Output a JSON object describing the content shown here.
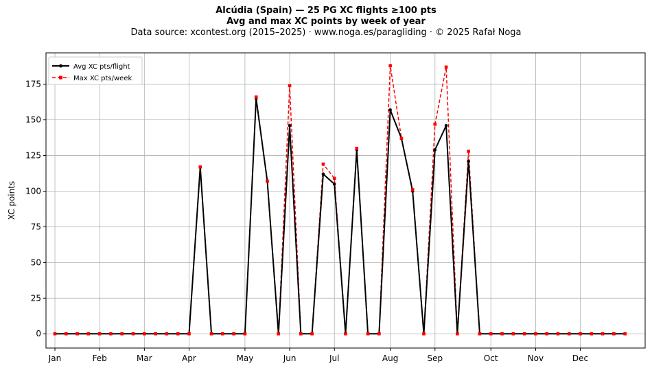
{
  "title": "Alcúdia (Spain)  —  25 PG XC flights ≥100 pts",
  "subtitle": "Avg and max XC points by week of year",
  "source": "Data source: xcontest.org (2015–2025)  ·  www.noga.es/paragliding  ·  © 2025 Rafał Noga",
  "chart_data": {
    "type": "line",
    "title": "Alcúdia (Spain)  —  25 PG XC flights ≥100 pts",
    "xlabel": "",
    "ylabel": "XC points",
    "x": [
      1,
      2,
      3,
      4,
      5,
      6,
      7,
      8,
      9,
      10,
      11,
      12,
      13,
      14,
      15,
      16,
      17,
      18,
      19,
      20,
      21,
      22,
      23,
      24,
      25,
      26,
      27,
      28,
      29,
      30,
      31,
      32,
      33,
      34,
      35,
      36,
      37,
      38,
      39,
      40,
      41,
      42,
      43,
      44,
      45,
      46,
      47,
      48,
      49,
      50,
      51,
      52
    ],
    "xlim": [
      0.2,
      53.8
    ],
    "ylim": [
      -10,
      197
    ],
    "yticks": [
      0,
      25,
      50,
      75,
      100,
      125,
      150,
      175
    ],
    "month_ticks": [
      {
        "label": "Jan",
        "x": 1
      },
      {
        "label": "Feb",
        "x": 5
      },
      {
        "label": "Mar",
        "x": 9
      },
      {
        "label": "Apr",
        "x": 13
      },
      {
        "label": "May",
        "x": 18
      },
      {
        "label": "Jun",
        "x": 22
      },
      {
        "label": "Jul",
        "x": 26
      },
      {
        "label": "Aug",
        "x": 31
      },
      {
        "label": "Sep",
        "x": 35
      },
      {
        "label": "Oct",
        "x": 40
      },
      {
        "label": "Nov",
        "x": 44
      },
      {
        "label": "Dec",
        "x": 48
      }
    ],
    "grid": true,
    "legend_position": "top-left",
    "series": [
      {
        "name": "Avg XC pts/flight",
        "color": "#000000",
        "linestyle": "solid",
        "marker": "circle",
        "values": [
          0,
          0,
          0,
          0,
          0,
          0,
          0,
          0,
          0,
          0,
          0,
          0,
          0,
          117,
          0,
          0,
          0,
          0,
          165,
          107,
          0,
          146,
          0,
          0,
          112,
          105,
          0,
          129,
          0,
          0,
          157,
          137,
          100,
          0,
          129,
          146,
          0,
          121,
          0,
          0,
          0,
          0,
          0,
          0,
          0,
          0,
          0,
          0,
          0,
          0,
          0,
          0
        ]
      },
      {
        "name": "Max XC pts/week",
        "color": "#ff0000",
        "linestyle": "dashed",
        "marker": "square",
        "values": [
          0,
          0,
          0,
          0,
          0,
          0,
          0,
          0,
          0,
          0,
          0,
          0,
          0,
          117,
          0,
          0,
          0,
          0,
          166,
          107,
          0,
          174,
          0,
          0,
          119,
          109,
          0,
          130,
          0,
          0,
          188,
          137,
          101,
          0,
          147,
          187,
          0,
          128,
          0,
          0,
          0,
          0,
          0,
          0,
          0,
          0,
          0,
          0,
          0,
          0,
          0,
          0
        ]
      }
    ]
  }
}
